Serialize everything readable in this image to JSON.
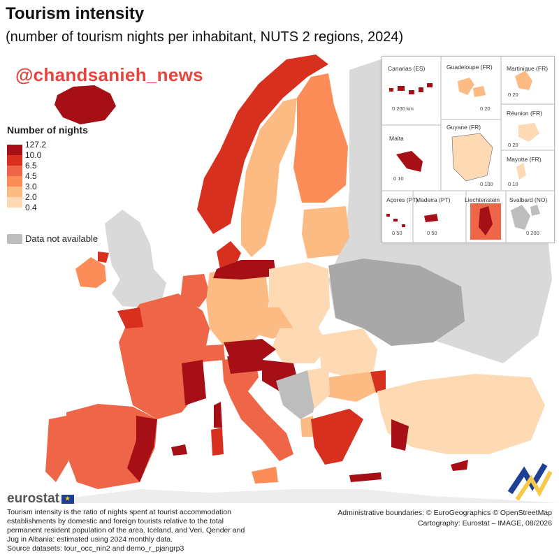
{
  "title": "Tourism intensity",
  "subtitle": "(number of tourism nights per inhabitant, NUTS 2 regions, 2024)",
  "watermark": "@chandsanieh_news",
  "legend": {
    "title": "Number of nights",
    "breaks": [
      "127.2",
      "10.0",
      "6.5",
      "4.5",
      "3.0",
      "2.0",
      "0.4"
    ],
    "classes": [
      {
        "color": "#a50f15"
      },
      {
        "color": "#d7301f"
      },
      {
        "color": "#ef6548"
      },
      {
        "color": "#fc8d59"
      },
      {
        "color": "#fdbb84"
      },
      {
        "color": "#fdd9b4"
      }
    ],
    "na_label": "Data not available",
    "na_color": "#bdbdbd"
  },
  "insets": {
    "canarias": {
      "label": "Canarias (ES)",
      "scale": "0    200 km"
    },
    "guadeloupe": {
      "label": "Guadeloupe (FR)",
      "scale": "0  20"
    },
    "martinique": {
      "label": "Martinique (FR)",
      "scale": "0  20"
    },
    "reunion": {
      "label": "Réunion (FR)",
      "scale": "0  20"
    },
    "malta": {
      "label": "Malta",
      "scale": "0  10"
    },
    "guyane": {
      "label": "Guyane (FR)",
      "scale": "0  100"
    },
    "mayotte": {
      "label": "Mayotte (FR)",
      "scale": "0 10"
    },
    "acores": {
      "label": "Açores (PT)",
      "scale": "0  50"
    },
    "madeira": {
      "label": "Madeira (PT)",
      "scale": "0  50"
    },
    "liechtenstein": {
      "label": "Liechtenstein"
    },
    "svalbard": {
      "label": "Svalbard (NO)",
      "scale": "0  200"
    }
  },
  "logo": "eurostat",
  "footnote": "Tourism intensity is the ratio of nights spent at tourist accommodation establishments by domestic and foreign tourists relative to the total permanent resident population of the area. Iceland, and Veri, Qender and Jug in Albania: estimated using 2024 monthly data.",
  "source": "Source datasets: tour_occ_nin2 and demo_r_pjangrp3",
  "credits": {
    "boundaries": "Administrative boundaries: © EuroGeographics © OpenStreetMap",
    "cartography": "Cartography: Eurostat – IMAGE, 08/2026"
  }
}
